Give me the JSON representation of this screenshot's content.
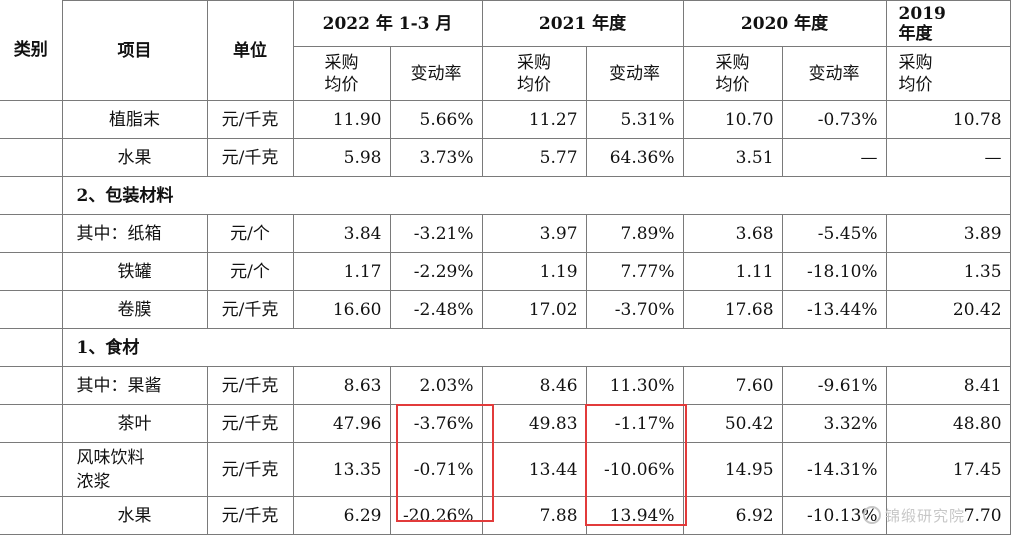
{
  "header": {
    "category": "类别",
    "item": "项目",
    "unit": "单位",
    "periods": [
      "2022 年 1-3 月",
      "2021 年度",
      "2020 年度",
      "2019\n年度"
    ],
    "price": "采购\n均价",
    "change": "变动率"
  },
  "rows": [
    {
      "kind": "data",
      "item": "植脂末",
      "unit": "元/千克",
      "values": [
        "11.90",
        "5.66%",
        "11.27",
        "5.31%",
        "10.70",
        "-0.73%",
        "10.78"
      ]
    },
    {
      "kind": "data",
      "item": "水果",
      "unit": "元/千克",
      "values": [
        "5.98",
        "3.73%",
        "5.77",
        "64.36%",
        "3.51",
        "—",
        "—"
      ]
    },
    {
      "kind": "section",
      "item": "2、包装材料"
    },
    {
      "kind": "data",
      "item": "其中：纸箱",
      "unit": "元/个",
      "values": [
        "3.84",
        "-3.21%",
        "3.97",
        "7.89%",
        "3.68",
        "-5.45%",
        "3.89"
      ]
    },
    {
      "kind": "data",
      "item": "铁罐",
      "unit": "元/个",
      "values": [
        "1.17",
        "-2.29%",
        "1.19",
        "7.77%",
        "1.11",
        "-18.10%",
        "1.35"
      ]
    },
    {
      "kind": "data",
      "item": "卷膜",
      "unit": "元/千克",
      "values": [
        "16.60",
        "-2.48%",
        "17.02",
        "-3.70%",
        "17.68",
        "-13.44%",
        "20.42"
      ]
    },
    {
      "kind": "section",
      "item": "1、食材"
    },
    {
      "kind": "data",
      "item": "其中：果酱",
      "unit": "元/千克",
      "values": [
        "8.63",
        "2.03%",
        "8.46",
        "11.30%",
        "7.60",
        "-9.61%",
        "8.41"
      ]
    },
    {
      "kind": "data",
      "item": "茶叶",
      "unit": "元/千克",
      "values": [
        "47.96",
        "-3.76%",
        "49.83",
        "-1.17%",
        "50.42",
        "3.32%",
        "48.80"
      ]
    },
    {
      "kind": "data",
      "item": "风味饮料\n浓浆",
      "unit": "元/千克",
      "values": [
        "13.35",
        "-0.71%",
        "13.44",
        "-10.06%",
        "14.95",
        "-14.31%",
        "17.45"
      ]
    },
    {
      "kind": "data",
      "item": "水果",
      "unit": "元/千克",
      "values": [
        "6.29",
        "-20.26%",
        "7.88",
        "13.94%",
        "6.92",
        "-10.13%",
        "7.70"
      ]
    }
  ],
  "highlight_color": "#e23b3b",
  "watermark": "锦缎研究院"
}
